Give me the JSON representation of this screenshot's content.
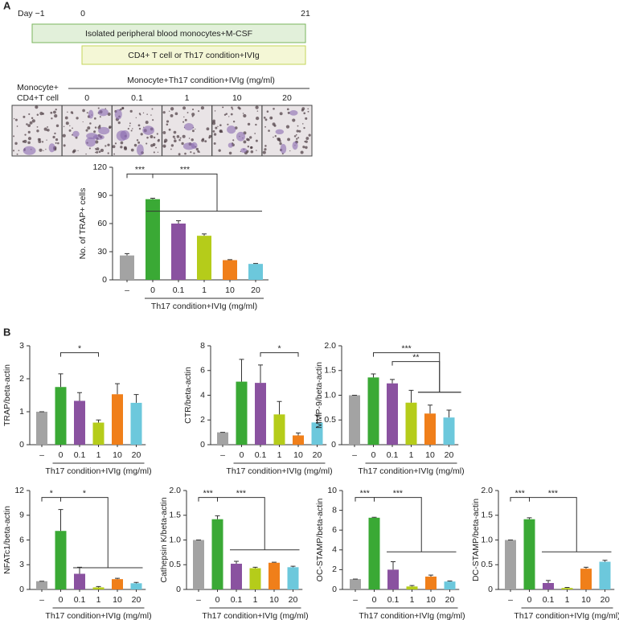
{
  "panel_labels": [
    "A",
    "B"
  ],
  "timeline": {
    "days": [
      "Day −1",
      "0",
      "21"
    ],
    "bars": [
      "Isolated peripheral blood monocytes+M-CSF",
      "CD4+ T cell or Th17 condition+IVIg"
    ]
  },
  "micrographs": {
    "header": "Monocyte+Th17 condition+IVIg (mg/ml)",
    "control_label": [
      "Monocyte+",
      "CD4+T cell"
    ],
    "columns": [
      "0",
      "0.1",
      "1",
      "10",
      "20"
    ]
  },
  "chart_data": [
    {
      "type": "bar",
      "ylabel": "No. of TRAP+ cells",
      "xlabel": "Th17 condition+IVIg (mg/ml)",
      "categories": [
        "–",
        "0",
        "0.1",
        "1",
        "10",
        "20"
      ],
      "values": [
        26,
        86,
        60,
        47,
        21,
        17
      ],
      "errors": [
        2,
        1,
        3,
        2,
        0.5,
        0.5
      ],
      "colors": [
        "#a3a3a3",
        "#3aa935",
        "#8a52a0",
        "#b5cc1a",
        "#f07f1a",
        "#6cc8dc"
      ],
      "ylim": [
        0,
        120
      ],
      "yticks": [
        0,
        30,
        60,
        90,
        120
      ],
      "annotations": [
        "***",
        "***"
      ]
    },
    {
      "type": "bar",
      "ylabel": "TRAP/beta-actin",
      "xlabel": "Th17 condition+IVIg (mg/ml)",
      "categories": [
        "–",
        "0",
        "0.1",
        "1",
        "10",
        "20"
      ],
      "values": [
        1,
        1.75,
        1.33,
        0.67,
        1.53,
        1.27
      ],
      "errors": [
        0,
        0.4,
        0.25,
        0.08,
        0.32,
        0.25
      ],
      "colors": [
        "#a3a3a3",
        "#3aa935",
        "#8a52a0",
        "#b5cc1a",
        "#f07f1a",
        "#6cc8dc"
      ],
      "ylim": [
        0,
        3
      ],
      "yticks": [
        0,
        1,
        2,
        3
      ],
      "annotations": [
        "*"
      ]
    },
    {
      "type": "bar",
      "ylabel": "CTR/beta-actin",
      "xlabel": "Th17 condition+IVIg (mg/ml)",
      "categories": [
        "–",
        "0",
        "0.1",
        "1",
        "10",
        "20"
      ],
      "values": [
        1,
        5.1,
        5.0,
        2.45,
        0.75,
        1.8
      ],
      "errors": [
        0,
        1.8,
        1.45,
        1.05,
        0.2,
        0.6
      ],
      "colors": [
        "#a3a3a3",
        "#3aa935",
        "#8a52a0",
        "#b5cc1a",
        "#f07f1a",
        "#6cc8dc"
      ],
      "ylim": [
        0,
        8
      ],
      "yticks": [
        0,
        2,
        4,
        6,
        8
      ],
      "annotations": [
        "*"
      ]
    },
    {
      "type": "bar",
      "ylabel": "MMP-9/beta-actin",
      "xlabel": "Th17 condition+IVIg (mg/ml)",
      "categories": [
        "–",
        "0",
        "0.1",
        "1",
        "10",
        "20"
      ],
      "values": [
        1.0,
        1.36,
        1.24,
        0.85,
        0.63,
        0.55
      ],
      "errors": [
        0,
        0.07,
        0.08,
        0.25,
        0.17,
        0.15
      ],
      "colors": [
        "#a3a3a3",
        "#3aa935",
        "#8a52a0",
        "#b5cc1a",
        "#f07f1a",
        "#6cc8dc"
      ],
      "ylim": [
        0,
        2
      ],
      "yticks": [
        0,
        0.5,
        {
          "value": 1,
          "label": "1.0"
        },
        1.5,
        {
          "value": 2,
          "label": "2.0"
        }
      ],
      "annotations": [
        "***",
        "**"
      ]
    },
    {
      "type": "bar",
      "ylabel": "NFATc1/beta-actin",
      "xlabel": "Th17 condition+IVIg (mg/ml)",
      "categories": [
        "–",
        "0",
        "0.1",
        "1",
        "10",
        "20"
      ],
      "values": [
        1,
        7.1,
        1.9,
        0.25,
        1.25,
        0.75
      ],
      "errors": [
        0,
        2.6,
        0.8,
        0.1,
        0.1,
        0.1
      ],
      "colors": [
        "#a3a3a3",
        "#3aa935",
        "#8a52a0",
        "#b5cc1a",
        "#f07f1a",
        "#6cc8dc"
      ],
      "ylim": [
        0,
        12
      ],
      "yticks": [
        0,
        3,
        6,
        9,
        12
      ],
      "annotations": [
        "*",
        "*"
      ]
    },
    {
      "type": "bar",
      "ylabel": "Cathepsin K/beta-actin",
      "xlabel": "Th17 condition+IVIg (mg/ml)",
      "categories": [
        "–",
        "0",
        "0.1",
        "1",
        "10",
        "20"
      ],
      "values": [
        1.0,
        1.42,
        0.52,
        0.43,
        0.54,
        0.45
      ],
      "errors": [
        0,
        0.07,
        0.05,
        0.02,
        0.01,
        0.02
      ],
      "colors": [
        "#a3a3a3",
        "#3aa935",
        "#8a52a0",
        "#b5cc1a",
        "#f07f1a",
        "#6cc8dc"
      ],
      "ylim": [
        0,
        2
      ],
      "yticks": [
        0,
        0.5,
        {
          "value": 1,
          "label": "1.0"
        },
        1.5,
        {
          "value": 2,
          "label": "2.0"
        }
      ],
      "annotations": [
        "***",
        "***"
      ]
    },
    {
      "type": "bar",
      "ylabel": "OC-STAMP/beta-actin",
      "xlabel": "Th17 condition+IVIg (mg/ml)",
      "categories": [
        "–",
        "0",
        "0.1",
        "1",
        "10",
        "20"
      ],
      "values": [
        1.05,
        7.25,
        2.0,
        0.3,
        1.3,
        0.8
      ],
      "errors": [
        0,
        0.05,
        0.8,
        0.1,
        0.15,
        0.05
      ],
      "colors": [
        "#a3a3a3",
        "#3aa935",
        "#8a52a0",
        "#b5cc1a",
        "#f07f1a",
        "#6cc8dc"
      ],
      "ylim": [
        0,
        10
      ],
      "yticks": [
        0,
        2,
        4,
        6,
        8,
        10
      ],
      "annotations": [
        "***",
        "***"
      ]
    },
    {
      "type": "bar",
      "ylabel": "DC-STAMP/beta-actin",
      "xlabel": "Th17 condition+IVIg (mg/ml)",
      "categories": [
        "–",
        "0",
        "0.1",
        "1",
        "10",
        "20"
      ],
      "values": [
        1.0,
        1.42,
        0.13,
        0.03,
        0.42,
        0.56
      ],
      "errors": [
        0,
        0.03,
        0.05,
        0.01,
        0.03,
        0.03
      ],
      "colors": [
        "#a3a3a3",
        "#3aa935",
        "#8a52a0",
        "#b5cc1a",
        "#f07f1a",
        "#6cc8dc"
      ],
      "ylim": [
        0,
        2
      ],
      "yticks": [
        0,
        0.5,
        {
          "value": 1,
          "label": "1.0"
        },
        1.5,
        {
          "value": 2,
          "label": "2.0"
        }
      ],
      "annotations": [
        "***",
        "***"
      ]
    }
  ]
}
